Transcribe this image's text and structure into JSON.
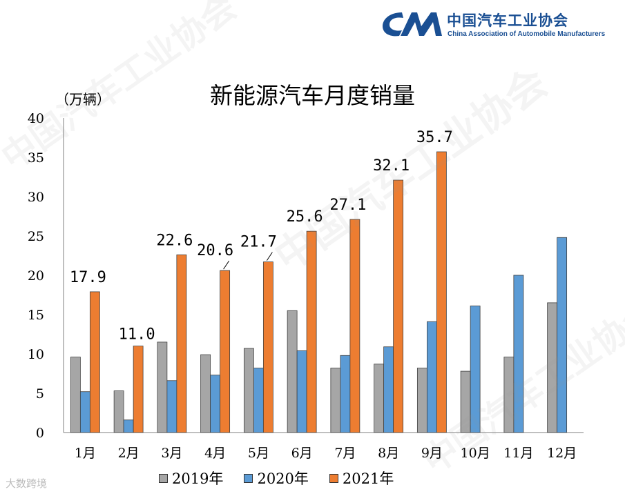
{
  "logo": {
    "name_cn": "中国汽车工业协会",
    "name_en": "China Association of Automobile Manufacturers"
  },
  "watermark_text": "中国汽车工业协会",
  "watermark_brand": "大数跨境",
  "colors": {
    "s2019": "#a6a6a6",
    "s2020": "#5b9bd5",
    "s2021": "#ed7d31",
    "brand": "#1a4f93"
  },
  "chart_data": {
    "type": "bar",
    "title": "新能源汽车月度销量",
    "ylabel": "（万辆）",
    "xlabel": "",
    "ylim": [
      0,
      40
    ],
    "yticks": [
      0,
      5,
      10,
      15,
      20,
      25,
      30,
      35,
      40
    ],
    "categories": [
      "1月",
      "2月",
      "3月",
      "4月",
      "5月",
      "6月",
      "7月",
      "8月",
      "9月",
      "10月",
      "11月",
      "12月"
    ],
    "series": [
      {
        "name": "2019年",
        "values": [
          9.6,
          5.3,
          11.5,
          9.9,
          10.7,
          15.5,
          8.2,
          8.7,
          8.2,
          7.8,
          9.6,
          16.5
        ]
      },
      {
        "name": "2020年",
        "values": [
          5.2,
          1.6,
          6.6,
          7.3,
          8.2,
          10.4,
          9.8,
          10.9,
          14.1,
          16.1,
          20.0,
          24.8
        ]
      },
      {
        "name": "2021年",
        "values": [
          17.9,
          11.0,
          22.6,
          20.6,
          21.7,
          25.6,
          27.1,
          32.1,
          35.7,
          null,
          null,
          null
        ]
      }
    ],
    "data_labels": [
      "17.9",
      "11.0",
      "22.6",
      "20.6",
      "21.7",
      "25.6",
      "27.1",
      "32.1",
      "35.7"
    ],
    "legend_position": "bottom",
    "grid": false
  }
}
